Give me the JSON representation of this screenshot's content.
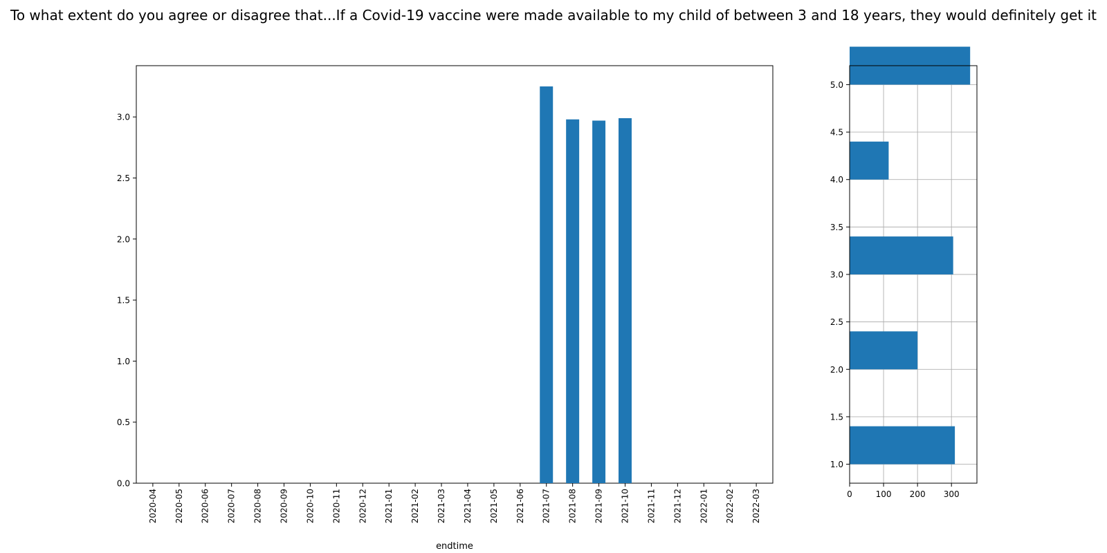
{
  "chart_data": [
    {
      "type": "bar",
      "title": "To what extent do you agree or disagree that...If a Covid-19 vaccine were made available to my child of between 3 and 18 years, they would definitely get it",
      "xlabel": "endtime",
      "ylabel": "",
      "categories": [
        "2020-04",
        "2020-05",
        "2020-06",
        "2020-07",
        "2020-08",
        "2020-09",
        "2020-10",
        "2020-11",
        "2020-12",
        "2021-01",
        "2021-02",
        "2021-03",
        "2021-04",
        "2021-05",
        "2021-06",
        "2021-07",
        "2021-08",
        "2021-09",
        "2021-10",
        "2021-11",
        "2021-12",
        "2022-01",
        "2022-02",
        "2022-03"
      ],
      "values": [
        null,
        null,
        null,
        null,
        null,
        null,
        null,
        null,
        null,
        null,
        null,
        null,
        null,
        null,
        null,
        3.25,
        2.98,
        2.97,
        2.99,
        null,
        null,
        null,
        null,
        null
      ],
      "ylim": [
        0,
        3.42
      ],
      "yticks": [
        "0.0",
        "0.5",
        "1.0",
        "1.5",
        "2.0",
        "2.5",
        "3.0"
      ],
      "grid": false,
      "color": "#1f77b4"
    },
    {
      "type": "bar",
      "orientation": "horizontal",
      "categories": [
        1.0,
        2.0,
        3.0,
        4.0,
        5.0
      ],
      "values": [
        310,
        200,
        305,
        115,
        355
      ],
      "xlim": [
        0,
        375
      ],
      "ylim": [
        0.8,
        5.2
      ],
      "xticks": [
        "0",
        "100",
        "200",
        "300"
      ],
      "yticks": [
        "1.0",
        "1.5",
        "2.0",
        "2.5",
        "3.0",
        "3.5",
        "4.0",
        "4.5",
        "5.0"
      ],
      "grid": true,
      "color": "#1f77b4"
    }
  ]
}
